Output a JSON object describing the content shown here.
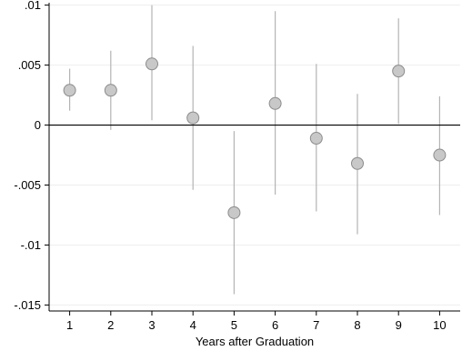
{
  "chart_data": {
    "type": "scatter",
    "xlabel": "Years after Graduation",
    "ylabel": "",
    "x": [
      1,
      2,
      3,
      4,
      5,
      6,
      7,
      8,
      9,
      10
    ],
    "x_tick_labels": [
      "1",
      "2",
      "3",
      "4",
      "5",
      "6",
      "7",
      "8",
      "9",
      "10"
    ],
    "xlim": [
      0.5,
      10.5
    ],
    "ylim": [
      -0.0155,
      0.0102
    ],
    "y_ticks": [
      0.01,
      0.005,
      0,
      -0.005,
      -0.01,
      -0.015
    ],
    "y_tick_labels": [
      ".01",
      ".005",
      "0",
      "-.005",
      "-.01",
      "-.015"
    ],
    "series": [
      {
        "values": [
          0.0029,
          0.0029,
          0.0051,
          0.0006,
          -0.0073,
          0.0018,
          -0.0011,
          -0.0032,
          0.0045,
          -0.0025
        ],
        "ci_low": [
          0.0012,
          -0.0004,
          0.0004,
          -0.0054,
          -0.0141,
          -0.0058,
          -0.0072,
          -0.0091,
          0.0001,
          -0.0075
        ],
        "ci_high": [
          0.0047,
          0.0062,
          0.01,
          0.0066,
          -0.0005,
          0.0095,
          0.0051,
          0.0026,
          0.0089,
          0.0024
        ]
      }
    ],
    "reference_line_y": 0,
    "grid": true,
    "colors": {
      "marker_fill": "#c8c8c8",
      "marker_stroke": "#8c8c8c",
      "ci_line": "#b4b4b4",
      "grid": "#eeeeee",
      "axis": "#000000"
    }
  }
}
